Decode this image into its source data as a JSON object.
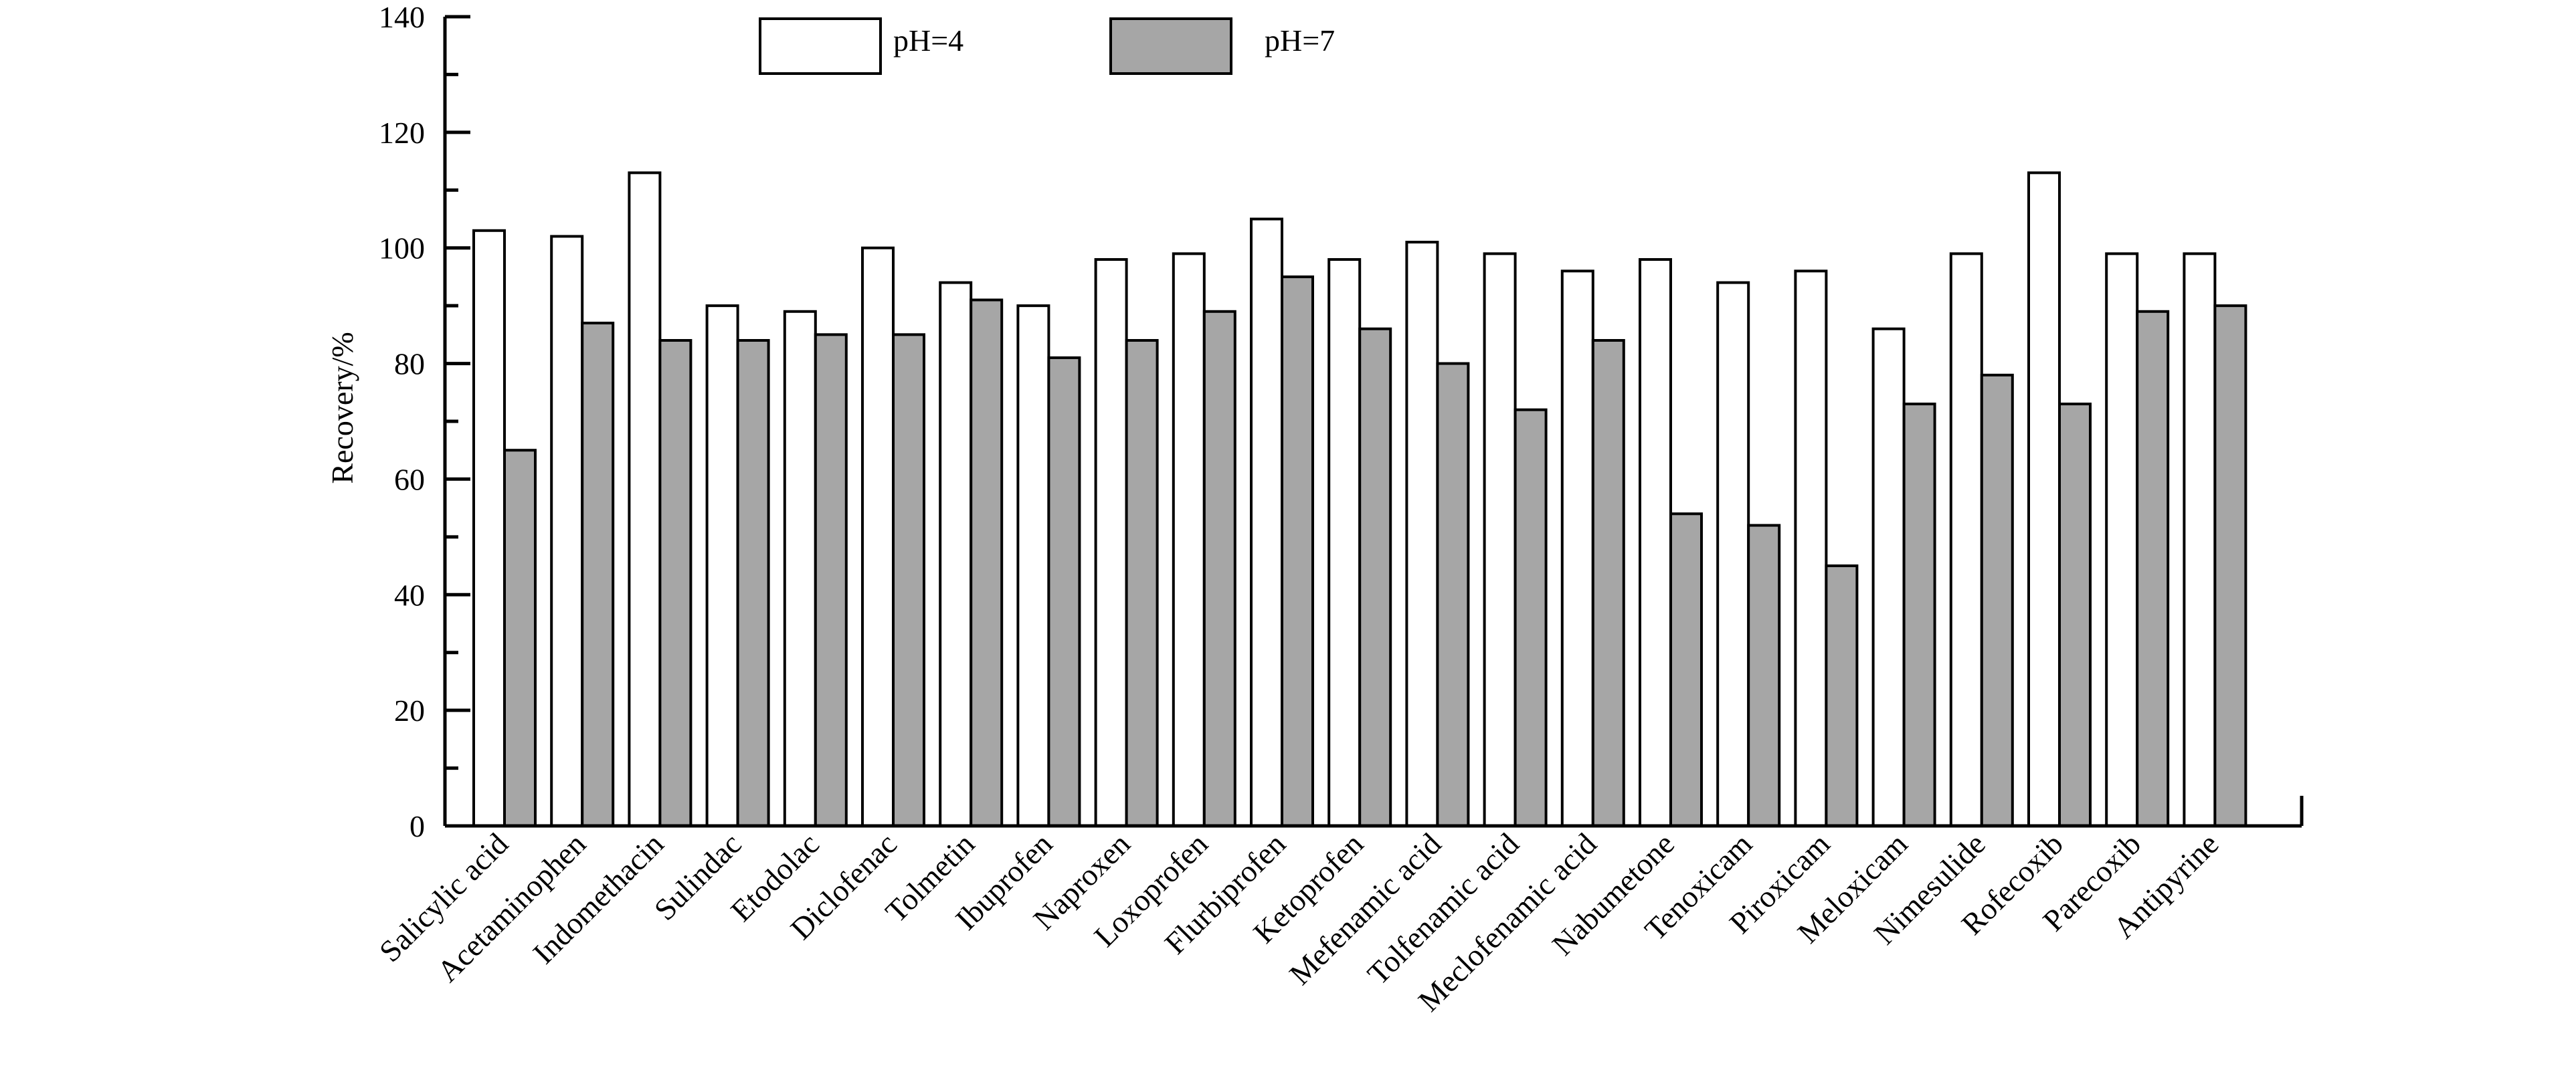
{
  "chart_data": {
    "type": "bar",
    "title": "",
    "xlabel": "",
    "ylabel": "Recovery/%",
    "ylim": [
      0,
      140
    ],
    "yticks": [
      0,
      20,
      40,
      60,
      80,
      100,
      120,
      140
    ],
    "grid": false,
    "legend_position": "top",
    "categories": [
      "Salicylic acid",
      "Acetaminophen",
      "Indomethacin",
      "Sulindac",
      "Etodolac",
      "Diclofenac",
      "Tolmetin",
      "Ibuprofen",
      "Naproxen",
      "Loxoprofen",
      "Flurbiprofen",
      "Ketoprofen",
      "Mefenamic acid",
      "Tolfenamic acid",
      "Meclofenamic acid",
      "Nabumetone",
      "Tenoxicam",
      "Piroxicam",
      "Meloxicam",
      "Nimesulide",
      "Rofecoxib",
      "Parecoxib",
      "Antipyrine"
    ],
    "series": [
      {
        "name": "pH=4",
        "color": "#ffffff",
        "values": [
          103,
          102,
          113,
          90,
          89,
          100,
          94,
          90,
          98,
          99,
          105,
          98,
          101,
          99,
          96,
          98,
          94,
          96,
          86,
          99,
          113,
          99,
          99
        ]
      },
      {
        "name": "pH=7",
        "color": "#a6a6a6",
        "values": [
          65,
          87,
          84,
          84,
          85,
          85,
          91,
          81,
          84,
          89,
          95,
          86,
          80,
          72,
          84,
          54,
          52,
          45,
          73,
          78,
          73,
          89,
          90
        ]
      }
    ]
  }
}
